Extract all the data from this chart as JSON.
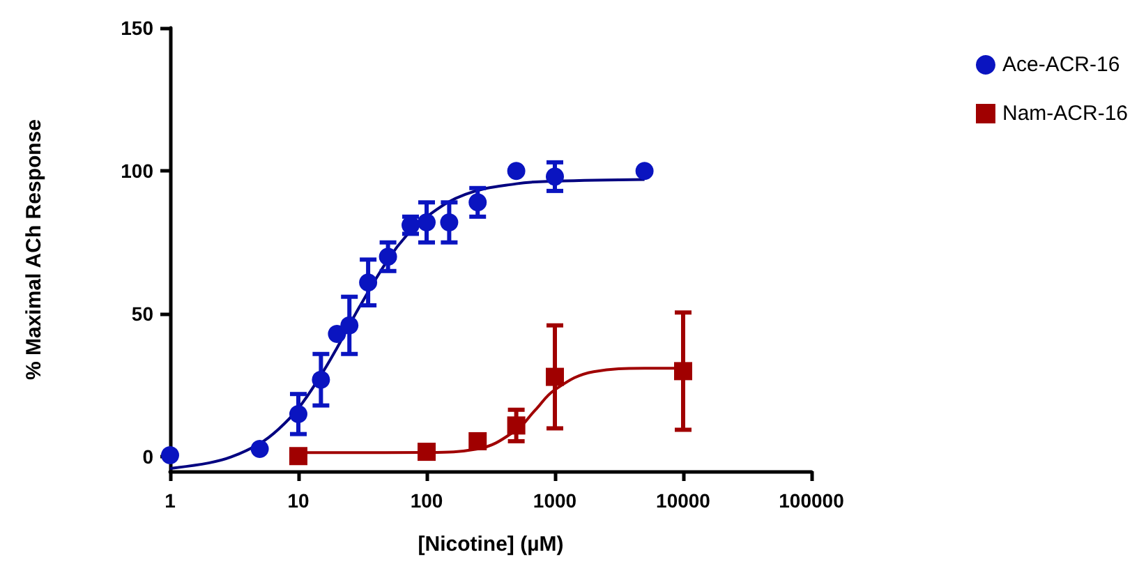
{
  "chart_data": {
    "type": "scatter",
    "xlabel": "[Nicotine] (µM)",
    "ylabel": "% Maximal ACh Response",
    "log": "x",
    "xlim": [
      1,
      100000
    ],
    "xticks": [
      1,
      10,
      100,
      1000,
      10000,
      100000
    ],
    "ylim": [
      -5,
      150
    ],
    "yticks": [
      0,
      50,
      100,
      150
    ],
    "grid": false,
    "legend": "top right",
    "series": [
      {
        "name": "Ace-ACR-16",
        "marker": "circle",
        "color": "#0a14c0",
        "x": [
          1,
          5,
          10,
          15,
          20,
          25,
          35,
          50,
          75,
          100,
          150,
          250,
          500,
          1000,
          5000
        ],
        "values": [
          0.6,
          2.8,
          15,
          27,
          43,
          46,
          61,
          70,
          81,
          82,
          82,
          89,
          100,
          98,
          100
        ],
        "errors": [
          null,
          null,
          7,
          9,
          null,
          10,
          8,
          5,
          3,
          7,
          7,
          5,
          null,
          5,
          null
        ]
      },
      {
        "name": "Nam-ACR-16",
        "marker": "square",
        "color": "#a00000",
        "x": [
          10,
          100,
          250,
          500,
          1000,
          10000
        ],
        "values": [
          0.3,
          1.8,
          5.5,
          11,
          28,
          30
        ],
        "errors": [
          null,
          null,
          null,
          5.5,
          18,
          20.5
        ]
      },
      {
        "type": "line",
        "marker": "none",
        "color": "#000080",
        "x": [
          1,
          2,
          3,
          5,
          7,
          10,
          15,
          20,
          30,
          50,
          70,
          100,
          200,
          500,
          1000,
          5000
        ],
        "values": [
          -4,
          -2.1,
          0,
          4.7,
          9.7,
          17,
          28.6,
          38.1,
          52.5,
          69,
          77.5,
          84,
          91.8,
          95.5,
          96.4,
          97
        ]
      },
      {
        "type": "line",
        "marker": "none",
        "color": "#a00000",
        "x": [
          10,
          100,
          250,
          500,
          700,
          1000,
          2000,
          5000,
          10000
        ],
        "values": [
          1.5,
          1.6,
          2.8,
          9.4,
          16.3,
          23.5,
          29.8,
          31,
          31
        ]
      }
    ]
  }
}
